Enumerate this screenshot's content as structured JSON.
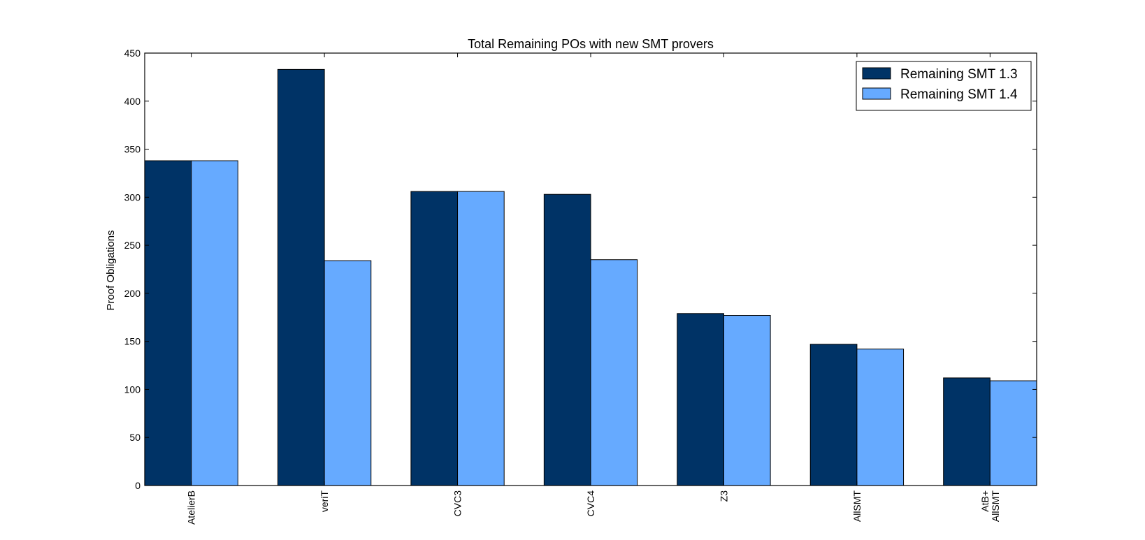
{
  "chart_data": {
    "type": "bar",
    "title": "Total Remaining POs with new SMT provers",
    "xlabel": "",
    "ylabel": "Proof Obligations",
    "ylim": [
      0,
      450
    ],
    "yticks": [
      0,
      50,
      100,
      150,
      200,
      250,
      300,
      350,
      400,
      450
    ],
    "categories": [
      "AtelierB",
      "veriT",
      "CVC3",
      "CVC4",
      "Z3",
      "AllSMT",
      [
        "AtB+",
        "AllSMT"
      ]
    ],
    "series": [
      {
        "name": "Remaining SMT 1.3",
        "color": "#003366",
        "values": [
          338,
          433,
          306,
          303,
          179,
          147,
          112
        ]
      },
      {
        "name": "Remaining SMT 1.4",
        "color": "#66aaff",
        "values": [
          338,
          234,
          306,
          235,
          177,
          142,
          109
        ]
      }
    ],
    "legend": {
      "position": "top-right"
    },
    "grid": false
  }
}
